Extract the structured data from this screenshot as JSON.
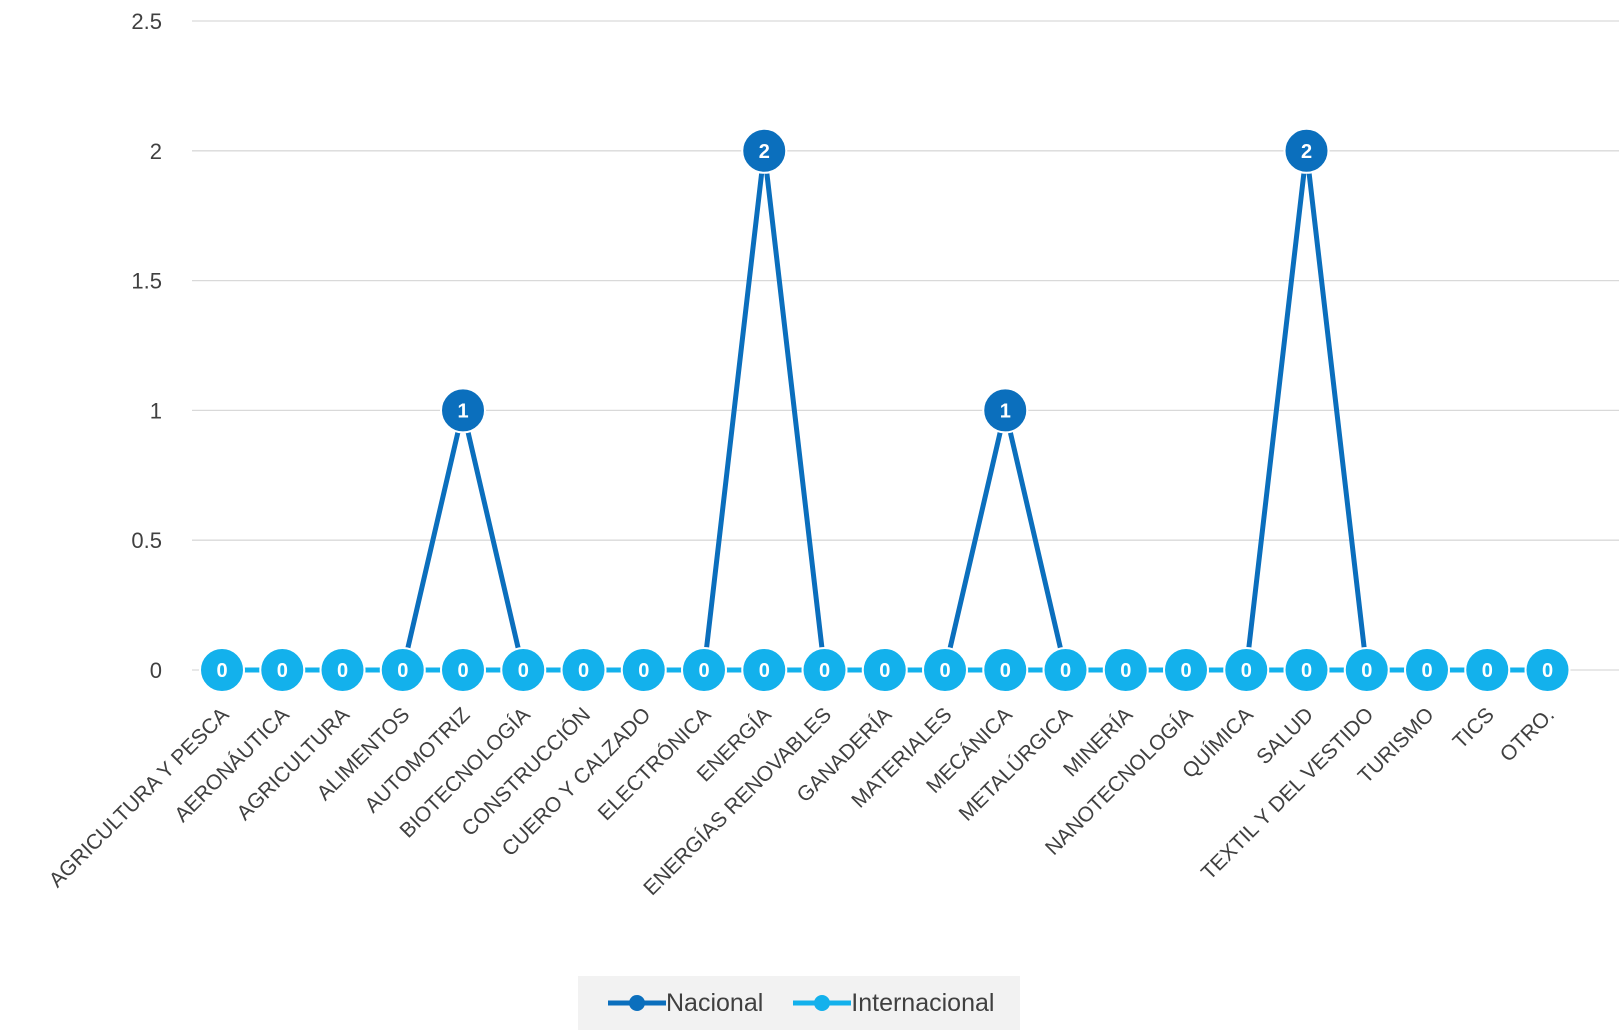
{
  "chart_data": {
    "type": "line",
    "title": "",
    "xlabel": "",
    "ylabel": "",
    "ylim": [
      0,
      2.5
    ],
    "yticks": [
      "0",
      "0.5",
      "1",
      "1.5",
      "2",
      "2.5"
    ],
    "grid": true,
    "legend_position": "bottom",
    "data_labels": true,
    "categories": [
      "AGRICULTURA Y PESCA",
      "AERONÁUTICA",
      "AGRICULTURA",
      "ALIMENTOS",
      "AUTOMOTRIZ",
      "BIOTECNOLOGÍA",
      "CONSTRUCCIÓN",
      "CUERO Y CALZADO",
      "ELECTRÓNICA",
      "ENERGÍA",
      "ENERGÍAS RENOVABLES",
      "GANADERÍA",
      "MATERIALES",
      "MECÁNICA",
      "METALÚRGICA",
      "MINERÍA",
      "NANOTECNOLOGÍA",
      "QUÍMICA",
      "SALUD",
      "TEXTIL Y DEL VESTIDO",
      "TURISMO",
      "TICS",
      "OTRO."
    ],
    "series": [
      {
        "name": "Nacional",
        "color": "#0b6fbd",
        "values": [
          0,
          0,
          0,
          0,
          1,
          0,
          0,
          0,
          0,
          2,
          0,
          0,
          0,
          1,
          0,
          0,
          0,
          0,
          2,
          0,
          0,
          0,
          0
        ]
      },
      {
        "name": "Internacional",
        "color": "#13b1ec",
        "values": [
          0,
          0,
          0,
          0,
          0,
          0,
          0,
          0,
          0,
          0,
          0,
          0,
          0,
          0,
          0,
          0,
          0,
          0,
          0,
          0,
          0,
          0,
          0
        ]
      }
    ]
  },
  "colors": {
    "grid": "#d9d9d9",
    "axis_text": "#404040",
    "label_text": "#ffffff"
  }
}
